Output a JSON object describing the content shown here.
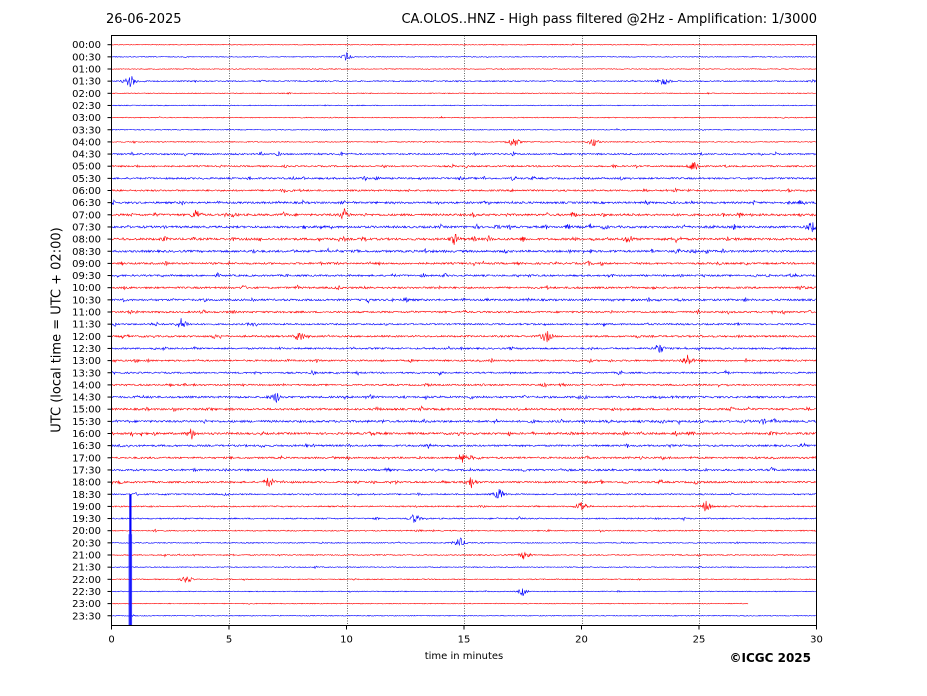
{
  "header": {
    "date": "26-06-2025",
    "title": "CA.OLOS..HNZ - High pass filtered @2Hz - Amplification: 1/3000"
  },
  "footer": {
    "copyright": "©ICGC 2025"
  },
  "chart_data": {
    "type": "line",
    "title": "CA.OLOS..HNZ - High pass filtered @2Hz - Amplification: 1/3000",
    "xlabel": "time in minutes",
    "ylabel": "UTC (local time = UTC + 02:00)",
    "xlim": [
      0,
      30
    ],
    "x_ticks": [
      0,
      5,
      10,
      15,
      20,
      25,
      30
    ],
    "x_tick_labels": [
      "0",
      "5",
      "10",
      "15",
      "20",
      "25",
      "30"
    ],
    "grid": "vertical dotted at 5-minute intervals",
    "trace_colors": [
      "#ff0000",
      "#0000ff"
    ],
    "rows": [
      "00:00",
      "00:30",
      "01:00",
      "01:30",
      "02:00",
      "02:30",
      "03:00",
      "03:30",
      "04:00",
      "04:30",
      "05:00",
      "05:30",
      "06:00",
      "06:30",
      "07:00",
      "07:30",
      "08:00",
      "08:30",
      "09:00",
      "09:30",
      "10:00",
      "10:30",
      "11:00",
      "11:30",
      "12:00",
      "12:30",
      "13:00",
      "13:30",
      "14:00",
      "14:30",
      "15:00",
      "15:30",
      "16:00",
      "16:30",
      "17:00",
      "17:30",
      "18:00",
      "18:30",
      "19:00",
      "19:30",
      "20:00",
      "20:30",
      "21:00",
      "21:30",
      "22:00",
      "22:30",
      "23:00",
      "23:30"
    ],
    "activity": [
      0.05,
      0.05,
      0.05,
      0.25,
      0.05,
      0.05,
      0.08,
      0.08,
      0.12,
      0.45,
      0.4,
      0.55,
      0.5,
      0.65,
      0.75,
      0.75,
      0.8,
      0.75,
      0.6,
      0.55,
      0.6,
      0.65,
      0.55,
      0.45,
      0.55,
      0.5,
      0.5,
      0.45,
      0.45,
      0.65,
      0.65,
      0.75,
      0.7,
      0.6,
      0.55,
      0.6,
      0.55,
      0.35,
      0.3,
      0.3,
      0.2,
      0.15,
      0.2,
      0.12,
      0.12,
      0.08,
      0.05,
      0.05
    ],
    "data_end_minutes": [
      30,
      30,
      30,
      30,
      30,
      30,
      30,
      30,
      30,
      30,
      30,
      30,
      30,
      30,
      30,
      30,
      30,
      30,
      30,
      30,
      30,
      30,
      30,
      30,
      30,
      30,
      30,
      30,
      30,
      30,
      30,
      30,
      30,
      30,
      30,
      30,
      30,
      30,
      30,
      30,
      30,
      30,
      30,
      30,
      30,
      30,
      27.1,
      30
    ],
    "events": [
      {
        "row": "00:30",
        "minute": 10.0,
        "amp": 0.5
      },
      {
        "row": "01:30",
        "minute": 0.8,
        "amp": 0.9
      },
      {
        "row": "01:30",
        "minute": 23.5,
        "amp": 0.7
      },
      {
        "row": "04:00",
        "minute": 17.1,
        "amp": 0.8
      },
      {
        "row": "04:00",
        "minute": 20.5,
        "amp": 0.6
      },
      {
        "row": "05:00",
        "minute": 24.8,
        "amp": 0.9
      },
      {
        "row": "07:00",
        "minute": 3.6,
        "amp": 0.8
      },
      {
        "row": "07:00",
        "minute": 9.9,
        "amp": 0.8
      },
      {
        "row": "07:30",
        "minute": 29.8,
        "amp": 0.8
      },
      {
        "row": "08:00",
        "minute": 14.6,
        "amp": 0.8
      },
      {
        "row": "08:00",
        "minute": 22.0,
        "amp": 0.7
      },
      {
        "row": "11:30",
        "minute": 3.0,
        "amp": 0.9
      },
      {
        "row": "12:00",
        "minute": 8.0,
        "amp": 0.8
      },
      {
        "row": "12:00",
        "minute": 18.5,
        "amp": 0.9
      },
      {
        "row": "12:30",
        "minute": 23.3,
        "amp": 0.8
      },
      {
        "row": "13:00",
        "minute": 24.5,
        "amp": 0.9
      },
      {
        "row": "14:30",
        "minute": 7.0,
        "amp": 0.8
      },
      {
        "row": "16:00",
        "minute": 3.4,
        "amp": 0.8
      },
      {
        "row": "17:00",
        "minute": 14.9,
        "amp": 0.8
      },
      {
        "row": "18:00",
        "minute": 6.7,
        "amp": 0.8
      },
      {
        "row": "18:00",
        "minute": 15.3,
        "amp": 0.8
      },
      {
        "row": "18:30",
        "minute": 16.5,
        "amp": 0.8
      },
      {
        "row": "19:00",
        "minute": 20.0,
        "amp": 0.8
      },
      {
        "row": "19:00",
        "minute": 25.3,
        "amp": 0.8
      },
      {
        "row": "19:30",
        "minute": 12.9,
        "amp": 0.7
      },
      {
        "row": "20:30",
        "minute": 14.8,
        "amp": 0.8
      },
      {
        "row": "21:00",
        "minute": 17.6,
        "amp": 0.7
      },
      {
        "row": "22:00",
        "minute": 3.2,
        "amp": 0.6
      },
      {
        "row": "22:30",
        "minute": 17.5,
        "amp": 0.5
      }
    ],
    "spike": {
      "minute": 0.8,
      "from_row": "18:30",
      "to_row": "23:30"
    }
  }
}
